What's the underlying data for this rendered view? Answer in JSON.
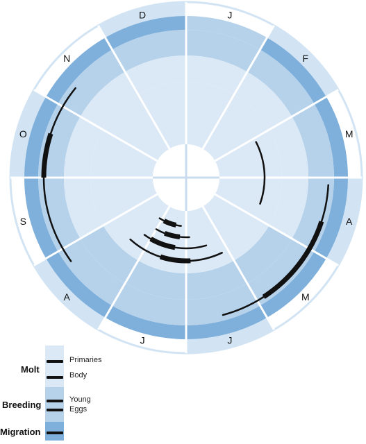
{
  "colors": {
    "outer_ring": "#d2e4f3",
    "ring_migration": "#7fb0dc",
    "ring_breeding": "#b6d2eb",
    "ring_molt": "#dbe9f6",
    "center": "#ffffff",
    "divider": "#ffffff",
    "bar": "#111111"
  },
  "months": [
    {
      "key": "jan",
      "label": "J",
      "shaded": false
    },
    {
      "key": "feb",
      "label": "F",
      "shaded": true
    },
    {
      "key": "mar",
      "label": "M",
      "shaded": false
    },
    {
      "key": "apr",
      "label": "A",
      "shaded": true
    },
    {
      "key": "may",
      "label": "M",
      "shaded": false
    },
    {
      "key": "jun",
      "label": "J",
      "shaded": true
    },
    {
      "key": "jul",
      "label": "J",
      "shaded": false
    },
    {
      "key": "aug",
      "label": "A",
      "shaded": true
    },
    {
      "key": "sep",
      "label": "S",
      "shaded": false
    },
    {
      "key": "oct",
      "label": "O",
      "shaded": true
    },
    {
      "key": "nov",
      "label": "N",
      "shaded": false
    },
    {
      "key": "dec",
      "label": "D",
      "shaded": true
    }
  ],
  "ring_fill": {
    "migration": [
      0,
      1,
      1,
      1,
      1,
      1,
      1,
      1,
      1,
      1,
      1,
      1
    ],
    "breeding": [
      0,
      0,
      0,
      0,
      1,
      1,
      1,
      1,
      0,
      0,
      0,
      0
    ]
  },
  "activities": [
    {
      "name": "Migration",
      "ring": "migration",
      "thin": [
        3.1,
        5.5
      ],
      "thick": [
        3.6,
        4.9
      ]
    },
    {
      "name": "Migration",
      "ring": "migration",
      "thin": [
        7.8,
        10.3
      ],
      "thick": [
        9.0,
        9.6
      ]
    },
    {
      "name": "Eggs",
      "ring": "eggs",
      "thin": [
        5.15,
        7.4
      ],
      "thick": [
        5.9,
        6.6
      ]
    },
    {
      "name": "Young",
      "ring": "young",
      "thin": [
        5.45,
        7.2
      ],
      "thick": [
        6.3,
        7.0
      ]
    },
    {
      "name": "Body",
      "ring": "body",
      "thin": [
        5.9,
        7.0
      ],
      "thick": [
        6.2,
        6.7
      ]
    },
    {
      "name": "Primaries",
      "ring": "primaries",
      "thin": [
        6.2,
        7.1
      ],
      "thick": [
        6.4,
        6.9
      ]
    },
    {
      "name": "Molt",
      "ring": "feb_molt",
      "thin": [
        2.1,
        3.65
      ],
      "thick": null
    }
  ],
  "legend": {
    "groups": [
      {
        "key": "molt",
        "label": "Molt"
      },
      {
        "key": "breeding",
        "label": "Breeding"
      },
      {
        "key": "migration",
        "label": "Migration"
      }
    ],
    "items": [
      {
        "key": "primaries",
        "label": "Primaries"
      },
      {
        "key": "body",
        "label": "Body"
      },
      {
        "key": "young",
        "label": "Young"
      },
      {
        "key": "eggs",
        "label": "Eggs"
      }
    ]
  }
}
